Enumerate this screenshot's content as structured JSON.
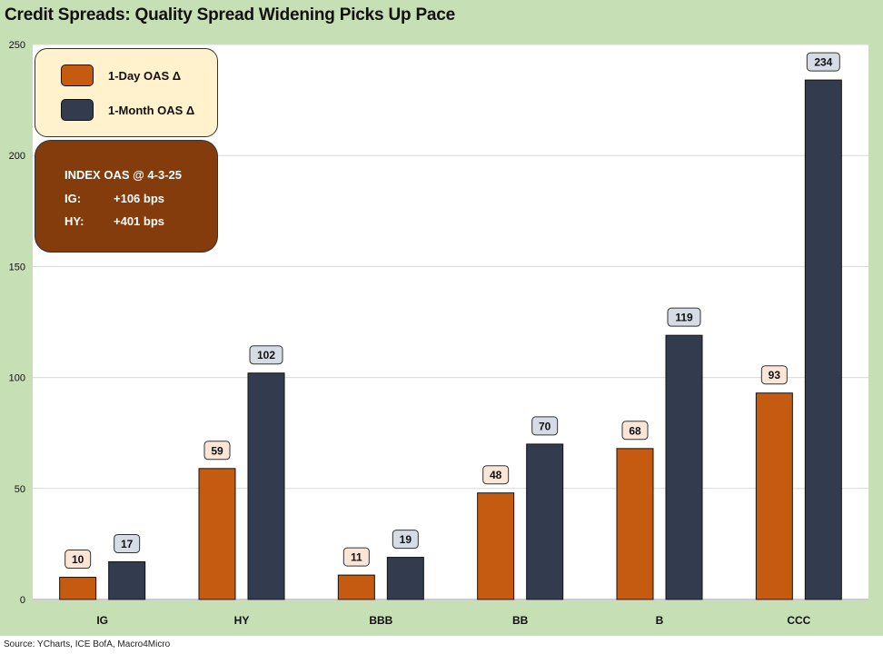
{
  "title": "Credit Spreads: Quality Spread Widening Picks Up Pace",
  "source": "Source: YCharts, ICE BofA, Macro4Micro",
  "legend": {
    "series1": "1-Day OAS Δ",
    "series2": "1-Month OAS Δ"
  },
  "info": {
    "title": "INDEX OAS @ 4-3-25",
    "ig_label": "IG:",
    "ig_value": "+106 bps",
    "hy_label": "HY:",
    "hy_value": "+401 bps"
  },
  "colors": {
    "series1": "#c55a11",
    "series2": "#323c4e",
    "label1_bg": "#fbe5d6",
    "label2_bg": "#d6dce5",
    "info_bg": "#843c0c",
    "legend_bg": "#fff2cc",
    "frame_bg": "#c6dfb4"
  },
  "chart_data": {
    "type": "bar",
    "title": "Credit Spreads: Quality Spread Widening Picks Up Pace",
    "xlabel": "",
    "ylabel": "",
    "ylim": [
      0,
      250
    ],
    "yticks": [
      0,
      50,
      100,
      150,
      200,
      250
    ],
    "grid": true,
    "categories": [
      "IG",
      "HY",
      "BBB",
      "BB",
      "B",
      "CCC"
    ],
    "series": [
      {
        "name": "1-Day OAS Δ",
        "values": [
          10,
          59,
          11,
          48,
          68,
          93
        ]
      },
      {
        "name": "1-Month OAS Δ",
        "values": [
          17,
          102,
          19,
          70,
          119,
          234
        ]
      }
    ]
  }
}
